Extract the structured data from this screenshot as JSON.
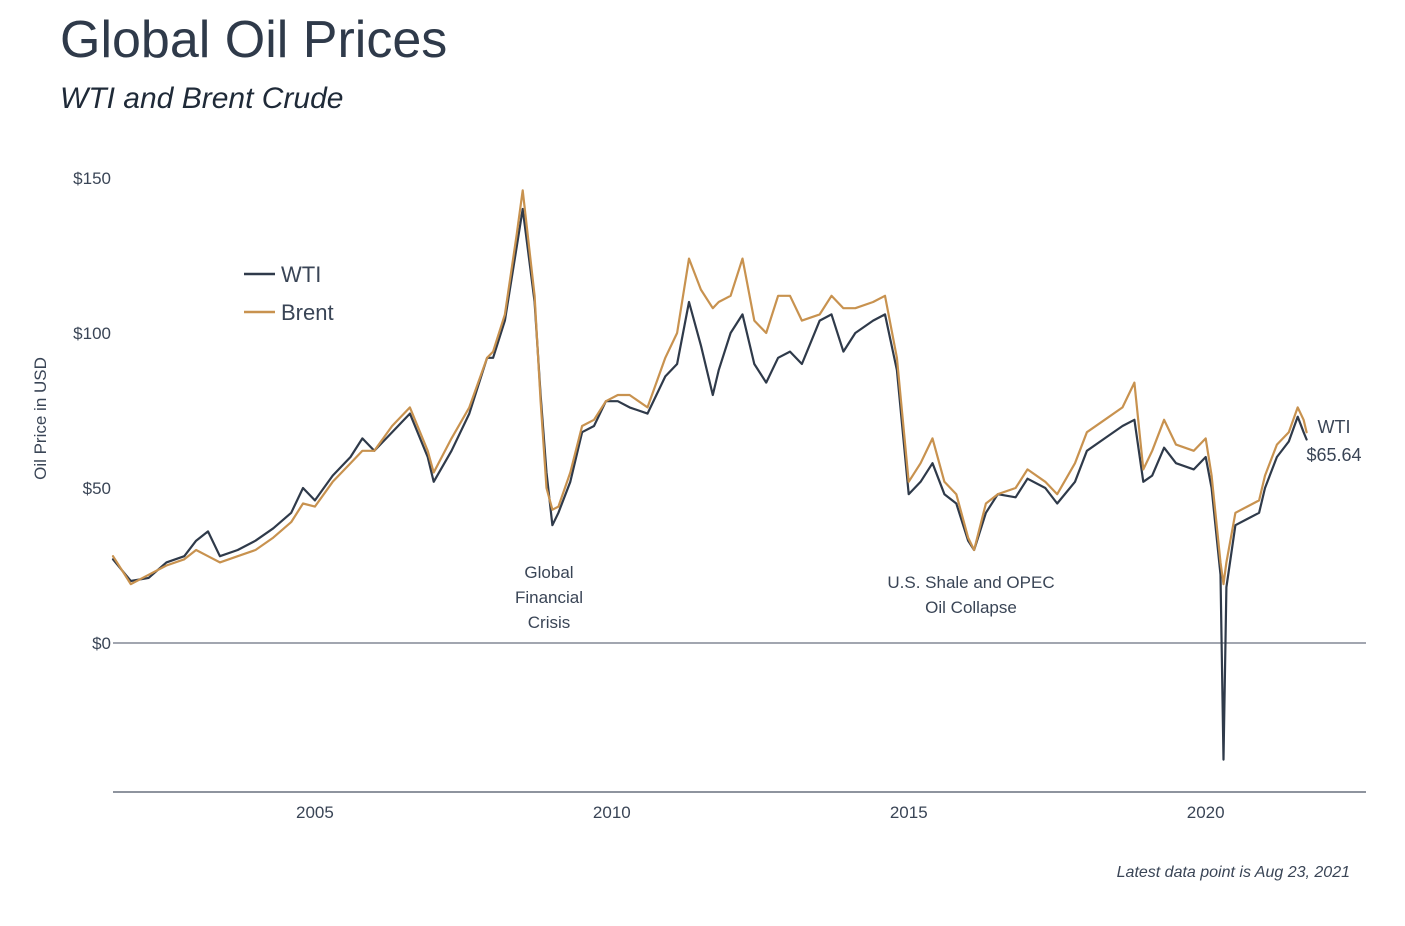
{
  "chart_data": {
    "type": "line",
    "title": "Global Oil Prices",
    "subtitle": "WTI and Brent Crude",
    "ylabel": "Oil Price in USD",
    "xlabel": "",
    "xlim": [
      2001.6,
      2022.7
    ],
    "ylim": [
      -48,
      150
    ],
    "x_ticks": [
      2005,
      2010,
      2015,
      2020
    ],
    "y_ticks": [
      {
        "value": 150,
        "label": "$150"
      },
      {
        "value": 100,
        "label": "$100"
      },
      {
        "value": 50,
        "label": "$50"
      },
      {
        "value": 0,
        "label": "$0"
      }
    ],
    "grid": false,
    "legend_position": "top-left",
    "series": [
      {
        "name": "WTI",
        "color": "#2f3a4a",
        "points": [
          [
            2001.6,
            27
          ],
          [
            2001.9,
            20
          ],
          [
            2002.2,
            21
          ],
          [
            2002.5,
            26
          ],
          [
            2002.8,
            28
          ],
          [
            2003.0,
            33
          ],
          [
            2003.2,
            36
          ],
          [
            2003.4,
            28
          ],
          [
            2003.7,
            30
          ],
          [
            2004.0,
            33
          ],
          [
            2004.3,
            37
          ],
          [
            2004.6,
            42
          ],
          [
            2004.8,
            50
          ],
          [
            2005.0,
            46
          ],
          [
            2005.3,
            54
          ],
          [
            2005.6,
            60
          ],
          [
            2005.8,
            66
          ],
          [
            2006.0,
            62
          ],
          [
            2006.3,
            68
          ],
          [
            2006.6,
            74
          ],
          [
            2006.9,
            60
          ],
          [
            2007.0,
            52
          ],
          [
            2007.3,
            62
          ],
          [
            2007.6,
            74
          ],
          [
            2007.9,
            92
          ],
          [
            2008.0,
            92
          ],
          [
            2008.2,
            104
          ],
          [
            2008.4,
            128
          ],
          [
            2008.5,
            140
          ],
          [
            2008.7,
            110
          ],
          [
            2008.8,
            80
          ],
          [
            2008.9,
            55
          ],
          [
            2009.0,
            38
          ],
          [
            2009.1,
            42
          ],
          [
            2009.3,
            52
          ],
          [
            2009.5,
            68
          ],
          [
            2009.7,
            70
          ],
          [
            2009.9,
            78
          ],
          [
            2010.1,
            78
          ],
          [
            2010.3,
            76
          ],
          [
            2010.6,
            74
          ],
          [
            2010.9,
            86
          ],
          [
            2011.1,
            90
          ],
          [
            2011.3,
            110
          ],
          [
            2011.5,
            96
          ],
          [
            2011.7,
            80
          ],
          [
            2011.8,
            88
          ],
          [
            2012.0,
            100
          ],
          [
            2012.2,
            106
          ],
          [
            2012.4,
            90
          ],
          [
            2012.6,
            84
          ],
          [
            2012.8,
            92
          ],
          [
            2013.0,
            94
          ],
          [
            2013.2,
            90
          ],
          [
            2013.5,
            104
          ],
          [
            2013.7,
            106
          ],
          [
            2013.9,
            94
          ],
          [
            2014.1,
            100
          ],
          [
            2014.4,
            104
          ],
          [
            2014.6,
            106
          ],
          [
            2014.8,
            88
          ],
          [
            2015.0,
            48
          ],
          [
            2015.2,
            52
          ],
          [
            2015.4,
            58
          ],
          [
            2015.6,
            48
          ],
          [
            2015.8,
            45
          ],
          [
            2016.0,
            33
          ],
          [
            2016.1,
            30
          ],
          [
            2016.3,
            42
          ],
          [
            2016.5,
            48
          ],
          [
            2016.8,
            47
          ],
          [
            2017.0,
            53
          ],
          [
            2017.3,
            50
          ],
          [
            2017.5,
            45
          ],
          [
            2017.8,
            52
          ],
          [
            2018.0,
            62
          ],
          [
            2018.3,
            66
          ],
          [
            2018.6,
            70
          ],
          [
            2018.8,
            72
          ],
          [
            2018.95,
            52
          ],
          [
            2019.1,
            54
          ],
          [
            2019.3,
            63
          ],
          [
            2019.5,
            58
          ],
          [
            2019.8,
            56
          ],
          [
            2020.0,
            60
          ],
          [
            2020.1,
            50
          ],
          [
            2020.25,
            22
          ],
          [
            2020.3,
            -37.6
          ],
          [
            2020.35,
            18
          ],
          [
            2020.5,
            38
          ],
          [
            2020.7,
            40
          ],
          [
            2020.9,
            42
          ],
          [
            2021.0,
            50
          ],
          [
            2021.2,
            60
          ],
          [
            2021.4,
            65
          ],
          [
            2021.55,
            73
          ],
          [
            2021.65,
            68
          ],
          [
            2021.7,
            65.64
          ]
        ]
      },
      {
        "name": "Brent",
        "color": "#c8924f",
        "points": [
          [
            2001.6,
            28
          ],
          [
            2001.9,
            19
          ],
          [
            2002.2,
            22
          ],
          [
            2002.5,
            25
          ],
          [
            2002.8,
            27
          ],
          [
            2003.0,
            30
          ],
          [
            2003.2,
            28
          ],
          [
            2003.4,
            26
          ],
          [
            2003.7,
            28
          ],
          [
            2004.0,
            30
          ],
          [
            2004.3,
            34
          ],
          [
            2004.6,
            39
          ],
          [
            2004.8,
            45
          ],
          [
            2005.0,
            44
          ],
          [
            2005.3,
            52
          ],
          [
            2005.6,
            58
          ],
          [
            2005.8,
            62
          ],
          [
            2006.0,
            62
          ],
          [
            2006.3,
            70
          ],
          [
            2006.6,
            76
          ],
          [
            2006.9,
            62
          ],
          [
            2007.0,
            55
          ],
          [
            2007.3,
            66
          ],
          [
            2007.6,
            76
          ],
          [
            2007.9,
            92
          ],
          [
            2008.0,
            94
          ],
          [
            2008.2,
            106
          ],
          [
            2008.4,
            132
          ],
          [
            2008.5,
            146
          ],
          [
            2008.7,
            112
          ],
          [
            2008.8,
            78
          ],
          [
            2008.9,
            50
          ],
          [
            2009.0,
            43
          ],
          [
            2009.1,
            44
          ],
          [
            2009.3,
            55
          ],
          [
            2009.5,
            70
          ],
          [
            2009.7,
            72
          ],
          [
            2009.9,
            78
          ],
          [
            2010.1,
            80
          ],
          [
            2010.3,
            80
          ],
          [
            2010.6,
            76
          ],
          [
            2010.9,
            92
          ],
          [
            2011.1,
            100
          ],
          [
            2011.3,
            124
          ],
          [
            2011.5,
            114
          ],
          [
            2011.7,
            108
          ],
          [
            2011.8,
            110
          ],
          [
            2012.0,
            112
          ],
          [
            2012.2,
            124
          ],
          [
            2012.4,
            104
          ],
          [
            2012.6,
            100
          ],
          [
            2012.8,
            112
          ],
          [
            2013.0,
            112
          ],
          [
            2013.2,
            104
          ],
          [
            2013.5,
            106
          ],
          [
            2013.7,
            112
          ],
          [
            2013.9,
            108
          ],
          [
            2014.1,
            108
          ],
          [
            2014.4,
            110
          ],
          [
            2014.6,
            112
          ],
          [
            2014.8,
            92
          ],
          [
            2015.0,
            52
          ],
          [
            2015.2,
            58
          ],
          [
            2015.4,
            66
          ],
          [
            2015.6,
            52
          ],
          [
            2015.8,
            48
          ],
          [
            2016.0,
            34
          ],
          [
            2016.1,
            30
          ],
          [
            2016.3,
            45
          ],
          [
            2016.5,
            48
          ],
          [
            2016.8,
            50
          ],
          [
            2017.0,
            56
          ],
          [
            2017.3,
            52
          ],
          [
            2017.5,
            48
          ],
          [
            2017.8,
            58
          ],
          [
            2018.0,
            68
          ],
          [
            2018.3,
            72
          ],
          [
            2018.6,
            76
          ],
          [
            2018.8,
            84
          ],
          [
            2018.95,
            56
          ],
          [
            2019.1,
            62
          ],
          [
            2019.3,
            72
          ],
          [
            2019.5,
            64
          ],
          [
            2019.8,
            62
          ],
          [
            2020.0,
            66
          ],
          [
            2020.1,
            54
          ],
          [
            2020.25,
            26
          ],
          [
            2020.3,
            19
          ],
          [
            2020.35,
            26
          ],
          [
            2020.5,
            42
          ],
          [
            2020.7,
            44
          ],
          [
            2020.9,
            46
          ],
          [
            2021.0,
            54
          ],
          [
            2021.2,
            64
          ],
          [
            2021.4,
            68
          ],
          [
            2021.55,
            76
          ],
          [
            2021.65,
            72
          ],
          [
            2021.7,
            68
          ]
        ]
      }
    ],
    "annotations": [
      {
        "id": "gfc",
        "lines": [
          "Global",
          "Financial",
          "Crisis"
        ]
      },
      {
        "id": "shale",
        "lines": [
          "U.S. Shale and OPEC",
          "Oil Collapse"
        ]
      }
    ],
    "end_label": {
      "series": "WTI",
      "name": "WTI",
      "value_text": "$65.64"
    },
    "footnote": "Latest data point is Aug 23, 2021"
  }
}
